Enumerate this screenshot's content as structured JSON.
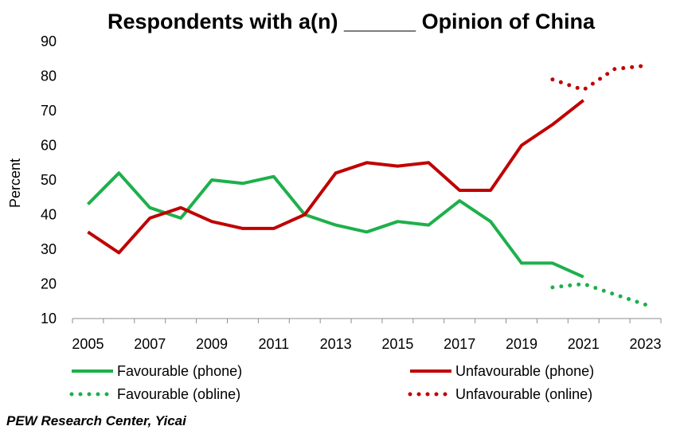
{
  "chart_data": {
    "type": "line",
    "title": "Respondents with  a(n) ______ Opinion of China",
    "ylabel": "Percent",
    "xlabel": "",
    "ylim": [
      10,
      90
    ],
    "yticks": [
      10,
      20,
      30,
      40,
      50,
      60,
      70,
      80,
      90
    ],
    "xlim": [
      2005,
      2023
    ],
    "xticks": [
      2005,
      2007,
      2009,
      2011,
      2013,
      2015,
      2017,
      2019,
      2021,
      2023
    ],
    "grid": "none",
    "legend_position": "bottom",
    "series": [
      {
        "name": "Favourable (phone)",
        "style": "solid",
        "color": "#1DB04B",
        "x": [
          2005,
          2006,
          2007,
          2008,
          2009,
          2010,
          2011,
          2012,
          2013,
          2014,
          2015,
          2016,
          2017,
          2018,
          2019,
          2020,
          2021
        ],
        "values": [
          43,
          52,
          42,
          39,
          50,
          49,
          51,
          40,
          37,
          35,
          38,
          37,
          44,
          38,
          26,
          26,
          22
        ]
      },
      {
        "name": "Unfavourable (phone)",
        "style": "solid",
        "color": "#C00000",
        "x": [
          2005,
          2006,
          2007,
          2008,
          2009,
          2010,
          2011,
          2012,
          2013,
          2014,
          2015,
          2016,
          2017,
          2018,
          2019,
          2020,
          2021
        ],
        "values": [
          35,
          29,
          39,
          42,
          38,
          36,
          36,
          40,
          52,
          55,
          54,
          55,
          47,
          47,
          60,
          66,
          73
        ]
      },
      {
        "name": "Favourable (obline)",
        "style": "dotted",
        "color": "#1DB04B",
        "x": [
          2020,
          2021,
          2022,
          2023
        ],
        "values": [
          19,
          20,
          17,
          14
        ]
      },
      {
        "name": "Unfavourable (online)",
        "style": "dotted",
        "color": "#C00000",
        "x": [
          2020,
          2021,
          2022,
          2023
        ],
        "values": [
          79,
          76,
          82,
          83
        ]
      }
    ],
    "source": "PEW Research Center, Yicai"
  }
}
